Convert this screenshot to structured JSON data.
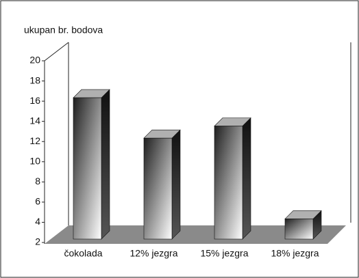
{
  "chart_data": {
    "type": "bar3d",
    "title": "ukupan br. bodova",
    "categories": [
      "čokolada",
      "12%  jezgra",
      "15% jezgra",
      "18% jezgra"
    ],
    "values": [
      16,
      12,
      13.2,
      4
    ],
    "ylim": [
      2,
      20
    ],
    "yticks": [
      2,
      4,
      6,
      8,
      10,
      12,
      14,
      16,
      18,
      20
    ]
  }
}
